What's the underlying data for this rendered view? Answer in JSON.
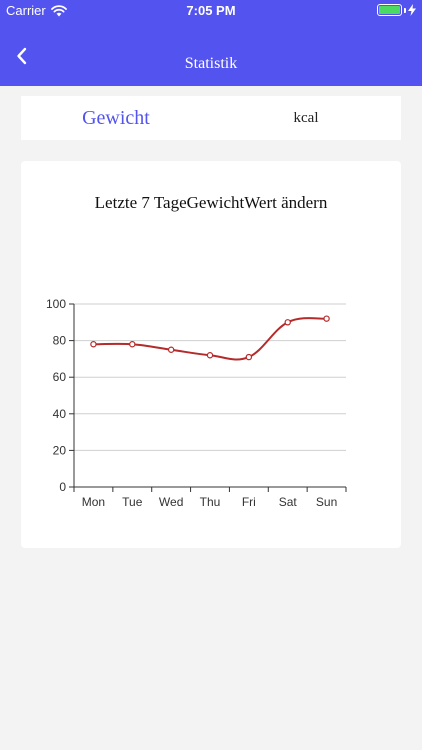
{
  "status_bar": {
    "carrier": "Carrier",
    "time": "7:05 PM",
    "battery_color": "#4cd964"
  },
  "nav": {
    "title": "Statistik",
    "back_icon": "chevron-left-icon",
    "background": "#5353f0"
  },
  "segment": {
    "items": [
      {
        "label": "Gewicht",
        "selected": true
      },
      {
        "label": "kcal",
        "selected": false
      }
    ],
    "accent": "#5353f0"
  },
  "card": {
    "title": "Letzte 7 TageGewichtWert ändern"
  },
  "chart_data": {
    "type": "line",
    "title": "Letzte 7 TageGewichtWert ändern",
    "categories": [
      "Mon",
      "Tue",
      "Wed",
      "Thu",
      "Fri",
      "Sat",
      "Sun"
    ],
    "series": [
      {
        "values": [
          78,
          78,
          75,
          72,
          71,
          90,
          92
        ],
        "color": "#b52a2a"
      }
    ],
    "ylim": [
      0,
      100
    ],
    "yticks": [
      0,
      20,
      40,
      60,
      80,
      100
    ],
    "xlabel": "",
    "ylabel": "",
    "grid": true,
    "smooth": true
  }
}
